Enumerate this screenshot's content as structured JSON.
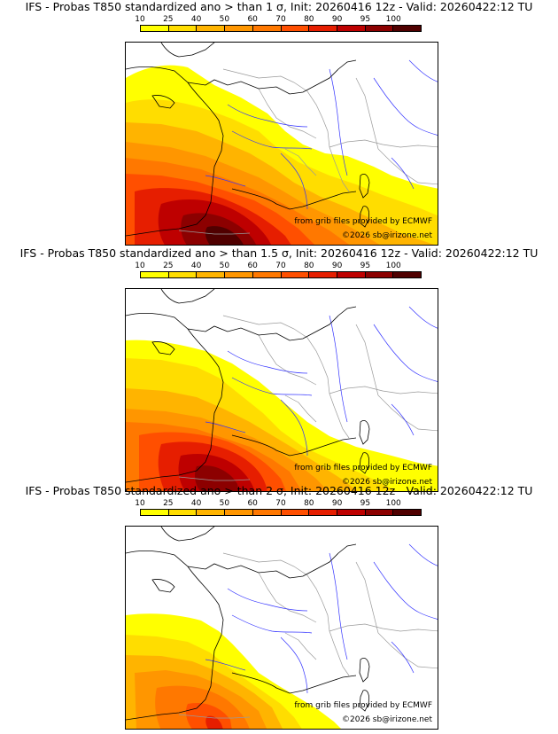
{
  "panels": [
    {
      "title": "IFS - Probas T850  standardized ano > than 1 σ, Init: 20260416 12z - Valid: 20260422:12 TU",
      "credit_source": "from grib files provided by ECMWF",
      "credit_copyright": "©2026 sb@irizone.net"
    },
    {
      "title": "IFS - Probas T850  standardized ano > than 1.5 σ, Init: 20260416 12z - Valid: 20260422:12 TU",
      "credit_source": "from grib files provided by ECMWF",
      "credit_copyright": "©2026 sb@irizone.net"
    },
    {
      "title": "IFS - Probas T850  standardized ano > than 2 σ, Init: 20260416 12z - Valid: 20260422:12 TU",
      "credit_source": "from grib files provided by ECMWF",
      "credit_copyright": "©2026 sb@irizone.net"
    }
  ],
  "colorbar": {
    "labels": [
      "10",
      "25",
      "40",
      "50",
      "60",
      "70",
      "80",
      "90",
      "95",
      "100"
    ],
    "colors": [
      "#ffff00",
      "#ffdd00",
      "#ffb400",
      "#ff9600",
      "#ff7800",
      "#ff4f00",
      "#e61e00",
      "#be0000",
      "#8c0000",
      "#500000"
    ]
  },
  "map_colors": {
    "coast": "#000000",
    "rivers": "#3333ff",
    "borders": "#9a9a9a"
  }
}
